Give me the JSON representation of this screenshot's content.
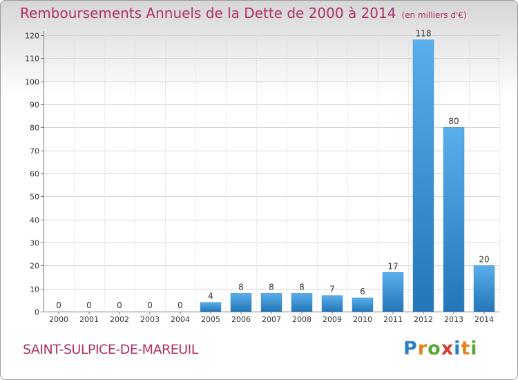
{
  "title": "Remboursements Annuels de la Dette de 2000 à 2014",
  "subtitle": "(en milliers d'€)",
  "commune": "SAINT-SULPICE-DE-MAREUIL",
  "logo": {
    "text": "Proxiti",
    "letters": [
      "P",
      "r",
      "o",
      "x",
      "i",
      "t",
      "i"
    ],
    "colors": [
      "#2a7fc8",
      "#e8831a",
      "#59a934",
      "#d63a2c",
      "#2a7fc8",
      "#e8831a",
      "#59a934"
    ]
  },
  "colors": {
    "accent": "#b0306a",
    "bar_top": "#5aaeea",
    "bar_bottom": "#2476b8"
  },
  "chart_data": {
    "type": "bar",
    "title": "Remboursements Annuels de la Dette de 2000 à 2014",
    "xlabel": "",
    "ylabel": "en milliers d'€",
    "categories": [
      "2000",
      "2001",
      "2002",
      "2003",
      "2004",
      "2005",
      "2006",
      "2007",
      "2008",
      "2009",
      "2010",
      "2011",
      "2012",
      "2013",
      "2014"
    ],
    "values": [
      0,
      0,
      0,
      0,
      0,
      4,
      8,
      8,
      8,
      7,
      6,
      17,
      118,
      80,
      20
    ],
    "ylim": [
      0,
      120
    ],
    "yticks": [
      0,
      10,
      20,
      30,
      40,
      50,
      60,
      70,
      80,
      90,
      100,
      110,
      120
    ],
    "grid": true
  }
}
